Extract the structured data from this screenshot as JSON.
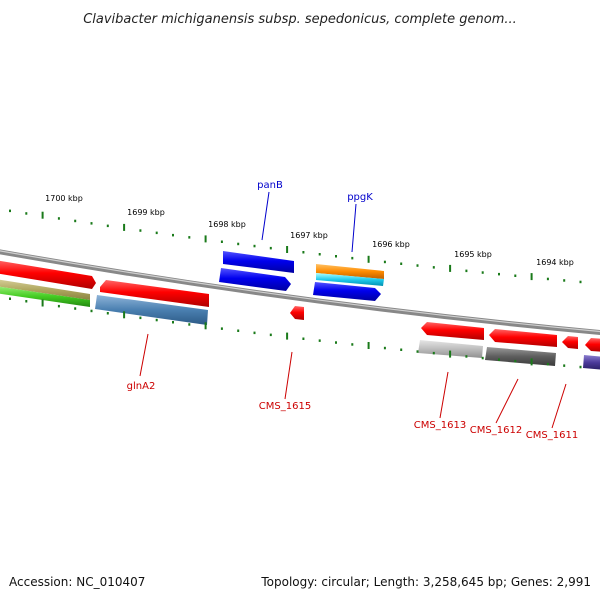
{
  "title": "Clavibacter michiganensis subsp. sepedonicus, complete genom...",
  "footer": {
    "accession": "Accession: NC_010407",
    "summary": "Topology: circular; Length: 3,258,645 bp; Genes: 2,991"
  },
  "colors": {
    "tick_green": "#1a7a1a",
    "label_blue": "#0000cc",
    "label_red": "#cc0000",
    "backbone": "#888888"
  },
  "kbp_ticks": [
    {
      "label": "1700 kbp"
    },
    {
      "label": "1699 kbp"
    },
    {
      "label": "1698 kbp"
    },
    {
      "label": "1697 kbp"
    },
    {
      "label": "1696 kbp"
    },
    {
      "label": "1695 kbp"
    },
    {
      "label": "1694 kbp"
    }
  ],
  "gene_labels": {
    "panB": "panB",
    "ppgK": "ppgK",
    "glnA2": "glnA2",
    "CMS_1615": "CMS_1615",
    "CMS_1613": "CMS_1613",
    "CMS_1612": "CMS_1612",
    "CMS_1611": "CMS_1611"
  }
}
